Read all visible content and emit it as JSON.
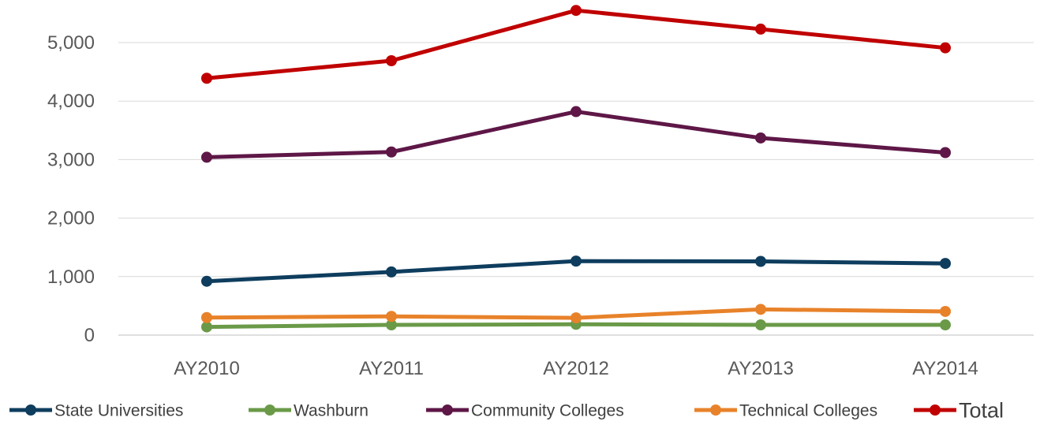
{
  "chart_data": {
    "type": "line",
    "title": "",
    "xlabel": "",
    "ylabel": "",
    "categories": [
      "AY2010",
      "AY2011",
      "AY2012",
      "AY2013",
      "AY2014"
    ],
    "ylim": [
      0,
      5500
    ],
    "yticks": [
      0,
      1000,
      2000,
      3000,
      4000,
      5000
    ],
    "ytick_labels": [
      "0",
      "1,000",
      "2,000",
      "3,000",
      "4,000",
      "5,000"
    ],
    "grid": true,
    "legend_position": "bottom",
    "series": [
      {
        "name": "State Universities",
        "color": "#0e3d5e",
        "values": [
          920,
          1080,
          1265,
          1260,
          1225
        ]
      },
      {
        "name": "Washburn",
        "color": "#6a9a48",
        "values": [
          140,
          175,
          185,
          175,
          175
        ]
      },
      {
        "name": "Community Colleges",
        "color": "#5e1747",
        "values": [
          3040,
          3130,
          3820,
          3370,
          3120
        ]
      },
      {
        "name": "Technical Colleges",
        "color": "#e8822a",
        "values": [
          300,
          320,
          295,
          440,
          405
        ]
      },
      {
        "name": "Total",
        "color": "#c00000",
        "values": [
          4390,
          4690,
          5550,
          5230,
          4910
        ]
      }
    ]
  }
}
